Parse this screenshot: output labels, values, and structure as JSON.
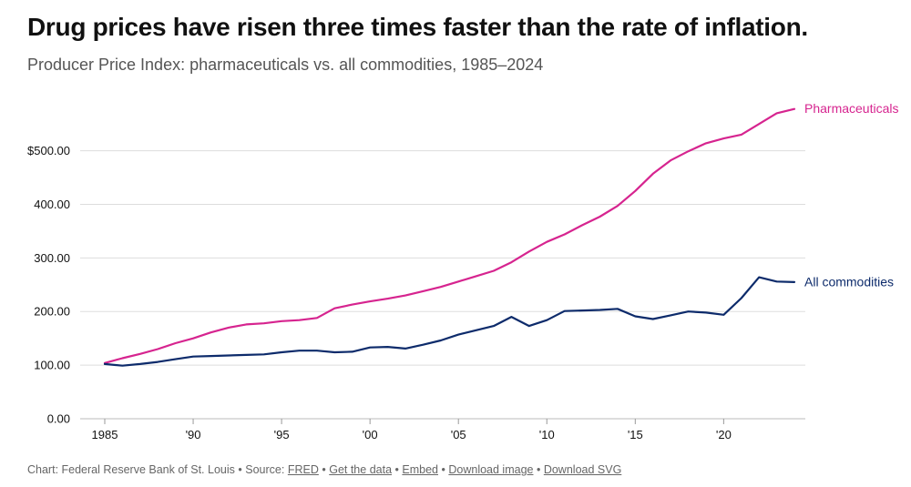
{
  "title": "Drug prices have risen three times faster than the rate of inflation.",
  "subtitle": "Producer Price Index: pharmaceuticals vs. all commodities, 1985–2024",
  "colors": {
    "pharmaceuticals": "#d6248f",
    "all_commodities": "#0d2b6b",
    "grid": "#dddddd",
    "text": "#111111",
    "muted": "#666666"
  },
  "footer": {
    "credit": "Chart: Federal Reserve Bank of St. Louis",
    "source_prefix": "Source:",
    "links": [
      "FRED",
      "Get the data",
      "Embed",
      "Download image",
      "Download SVG"
    ],
    "separator": "•"
  },
  "chart_data": {
    "type": "line",
    "title": "Drug prices have risen three times faster than the rate of inflation.",
    "subtitle": "Producer Price Index: pharmaceuticals vs. all commodities, 1985–2024",
    "xlabel": "",
    "ylabel": "",
    "xlim": [
      1985,
      2024
    ],
    "ylim": [
      0,
      580
    ],
    "x_ticks": [
      1985,
      1990,
      1995,
      2000,
      2005,
      2010,
      2015,
      2020
    ],
    "x_tick_labels": [
      "1985",
      "'90",
      "'95",
      "'00",
      "'05",
      "'10",
      "'15",
      "'20"
    ],
    "y_ticks": [
      0,
      100,
      200,
      300,
      400,
      500
    ],
    "y_tick_labels": [
      "0.00",
      "100.00",
      "200.00",
      "300.00",
      "400.00",
      "$500.00"
    ],
    "grid": true,
    "legend": "direct labels at line ends (right)",
    "x": [
      1985,
      1986,
      1987,
      1988,
      1989,
      1990,
      1991,
      1992,
      1993,
      1994,
      1995,
      1996,
      1997,
      1998,
      1999,
      2000,
      2001,
      2002,
      2003,
      2004,
      2005,
      2006,
      2007,
      2008,
      2009,
      2010,
      2011,
      2012,
      2013,
      2014,
      2015,
      2016,
      2017,
      2018,
      2019,
      2020,
      2021,
      2022,
      2023,
      2024
    ],
    "series": [
      {
        "name": "Pharmaceuticals",
        "color": "#d6248f",
        "values": [
          104,
          113,
          121,
          130,
          141,
          150,
          161,
          170,
          176,
          178,
          182,
          184,
          188,
          206,
          213,
          219,
          224,
          230,
          238,
          246,
          256,
          266,
          276,
          292,
          312,
          330,
          344,
          361,
          377,
          397,
          425,
          457,
          482,
          499,
          514,
          523,
          530,
          550,
          570,
          578
        ]
      },
      {
        "name": "All commodities",
        "color": "#0d2b6b",
        "values": [
          102,
          99,
          102,
          106,
          111,
          116,
          117,
          118,
          119,
          120,
          124,
          127,
          127,
          124,
          125,
          133,
          134,
          131,
          138,
          146,
          157,
          165,
          173,
          190,
          173,
          184,
          201,
          202,
          203,
          205,
          191,
          186,
          193,
          200,
          198,
          194,
          225,
          264,
          256,
          255
        ]
      }
    ]
  }
}
